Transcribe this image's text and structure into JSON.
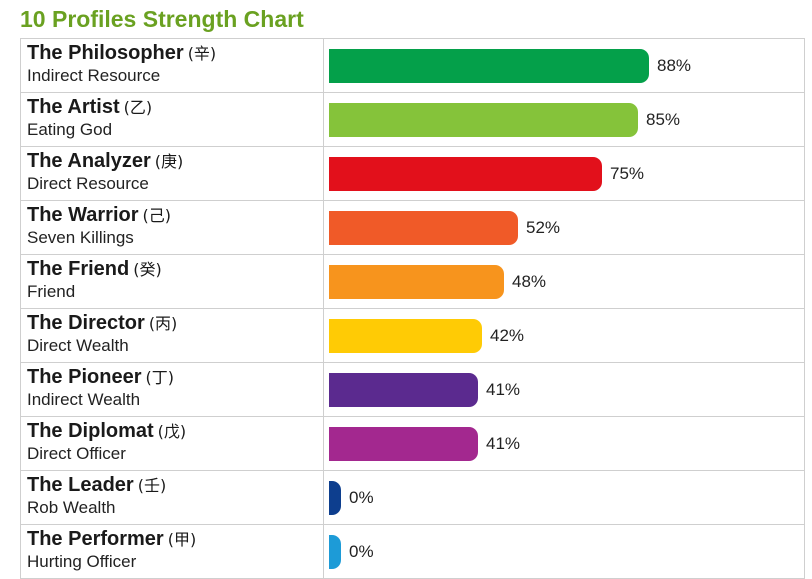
{
  "chart_data": {
    "type": "bar",
    "orientation": "horizontal",
    "title": "10 Profiles Strength Chart",
    "xlim": [
      0,
      100
    ],
    "value_suffix": "%",
    "grid": false,
    "rows": [
      {
        "name": "The Philosopher",
        "stem": "(辛)",
        "sub": "Indirect Resource",
        "value": 88,
        "color": "#04a04a"
      },
      {
        "name": "The Artist",
        "stem": "(乙)",
        "sub": "Eating God",
        "value": 85,
        "color": "#85c33a"
      },
      {
        "name": "The Analyzer",
        "stem": "(庚)",
        "sub": "Direct Resource",
        "value": 75,
        "color": "#e2101b"
      },
      {
        "name": "The Warrior",
        "stem": "(己)",
        "sub": "Seven Killings",
        "value": 52,
        "color": "#f05a28"
      },
      {
        "name": "The Friend",
        "stem": "(癸)",
        "sub": "Friend",
        "value": 48,
        "color": "#f7941d"
      },
      {
        "name": "The Director",
        "stem": "(丙)",
        "sub": "Direct Wealth",
        "value": 42,
        "color": "#ffcb05"
      },
      {
        "name": "The Pioneer",
        "stem": "(丁)",
        "sub": "Indirect Wealth",
        "value": 41,
        "color": "#5b2a8f"
      },
      {
        "name": "The Diplomat",
        "stem": "(戊)",
        "sub": "Direct Officer",
        "value": 41,
        "color": "#a3288f"
      },
      {
        "name": "The Leader",
        "stem": "(壬)",
        "sub": "Rob Wealth",
        "value": 0,
        "color": "#0d3e8e"
      },
      {
        "name": "The Performer",
        "stem": "(甲)",
        "sub": "Hurting Officer",
        "value": 0,
        "color": "#1d9bd7"
      }
    ]
  }
}
